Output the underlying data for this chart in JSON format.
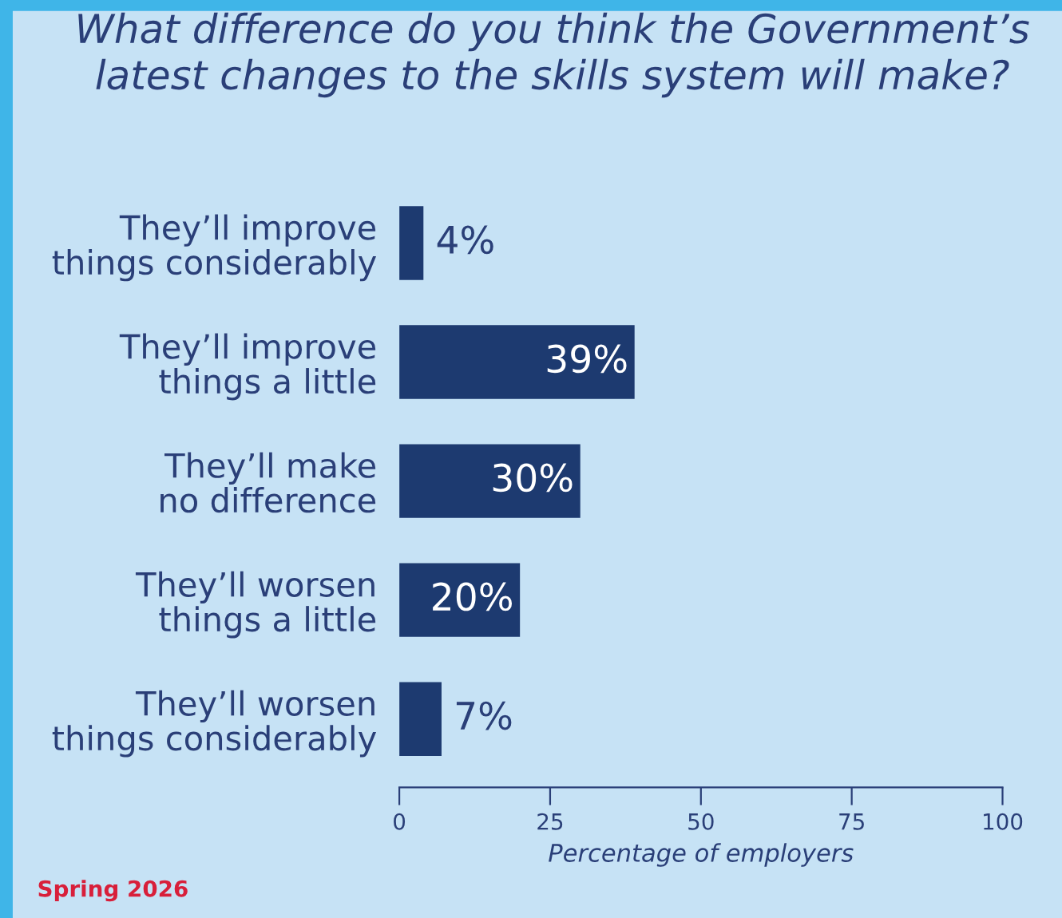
{
  "chart_data": {
    "type": "bar",
    "orientation": "horizontal",
    "title": "What difference do you think the Government’s\nlatest changes to the skills system will make?",
    "categories": [
      "They’ll improve\nthings considerably",
      "They’ll improve\nthings a little",
      "They’ll make\nno difference",
      "They’ll worsen\nthings a little",
      "They’ll worsen\nthings considerably"
    ],
    "values": [
      4,
      39,
      30,
      20,
      7
    ],
    "color": "#1d3a70",
    "xlim": [
      0,
      100
    ],
    "xticks": [
      0,
      25,
      50,
      75,
      100
    ],
    "xlabel": "Percentage of employers",
    "value_labels": [
      "4%",
      "39%",
      "30%",
      "20%",
      "7%"
    ],
    "grid": false,
    "legend": false,
    "annotations": [
      "Spring 2026"
    ]
  }
}
